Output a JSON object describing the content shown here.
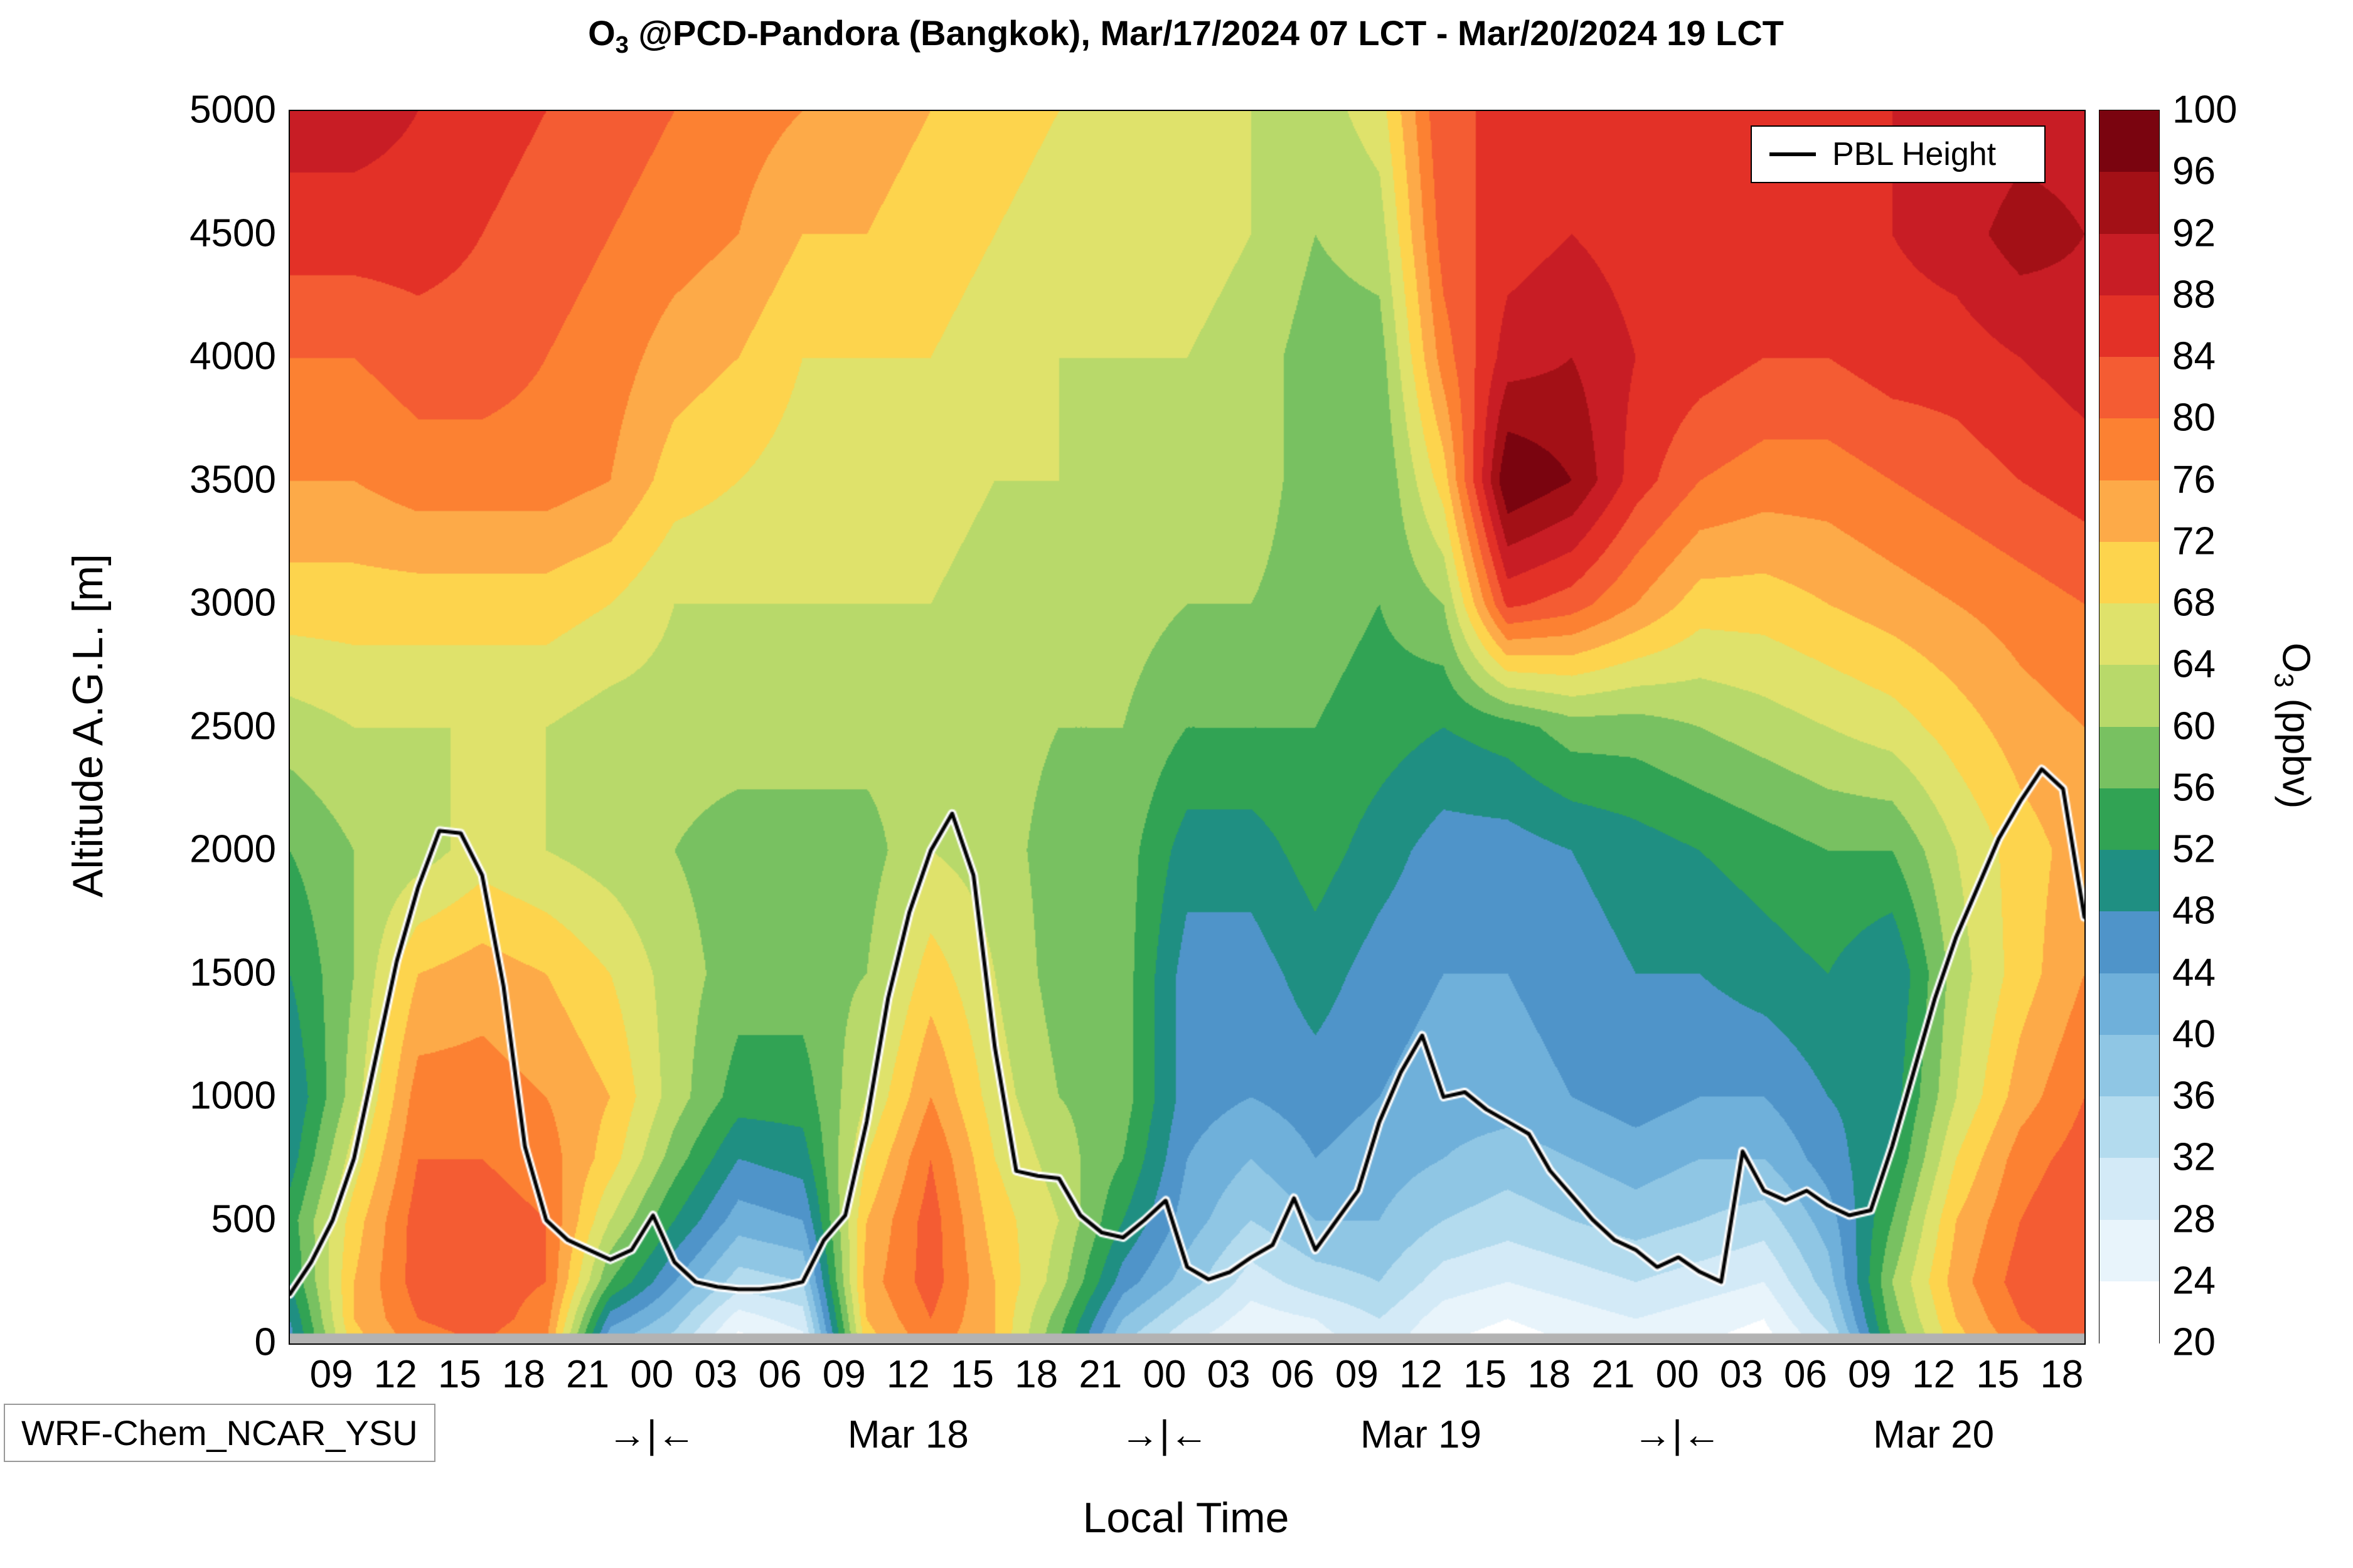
{
  "title": {
    "o": "O",
    "sub": "3",
    "rest": " @PCD-Pandora (Bangkok), Mar/17/2024 07 LCT - Mar/20/2024 19 LCT"
  },
  "ylabel": "Altitude A.G.L. [m]",
  "xlabel": "Local Time",
  "model_label": "WRF-Chem_NCAR_YSU",
  "legend": {
    "pbl_label": "PBL Height"
  },
  "colors": {
    "ground_strip": "#b3b3b3",
    "pbl_line": "#000000",
    "pbl_halo": "#ffffff",
    "frame": "#000000"
  },
  "colorbar": {
    "title_o": "O",
    "title_sub": "3",
    "title_rest": " (ppbv)",
    "min": 20,
    "max": 100,
    "step": 4,
    "tick_labels": [
      100,
      96,
      92,
      88,
      84,
      80,
      76,
      72,
      68,
      64,
      60,
      56,
      52,
      48,
      44,
      40,
      36,
      32,
      28,
      24,
      20
    ],
    "colors": [
      "#ffffff",
      "#e8f4fb",
      "#d3eaf7",
      "#b3dbee",
      "#8fc6e4",
      "#6fb0da",
      "#4f94c9",
      "#1f8f82",
      "#31a354",
      "#78c161",
      "#b8d96a",
      "#dfe26b",
      "#fdd44d",
      "#fdaa48",
      "#fc8132",
      "#f45c33",
      "#e33127",
      "#c81d25",
      "#a31016",
      "#7a040f"
    ]
  },
  "axes": {
    "y_ticks": [
      0,
      500,
      1000,
      1500,
      2000,
      2500,
      3000,
      3500,
      4000,
      4500,
      5000
    ],
    "x_tick_hours": [
      9,
      12,
      15,
      18,
      21,
      24,
      27,
      30,
      33,
      36,
      39,
      42,
      45,
      48,
      51,
      54,
      57,
      60,
      63,
      66,
      69,
      72,
      75,
      78,
      81,
      84,
      87,
      90
    ],
    "x_tick_labels": [
      "09",
      "12",
      "15",
      "18",
      "21",
      "00",
      "03",
      "06",
      "09",
      "12",
      "15",
      "18",
      "21",
      "00",
      "03",
      "06",
      "09",
      "12",
      "15",
      "18",
      "21",
      "00",
      "03",
      "06",
      "09",
      "12",
      "15",
      "18"
    ],
    "date_labels": [
      {
        "hour": 36,
        "label": "Mar 18"
      },
      {
        "hour": 60,
        "label": "Mar 19"
      },
      {
        "hour": 84,
        "label": "Mar 20"
      }
    ],
    "day_separator_hours": [
      24,
      48,
      72
    ],
    "day_separator_text": "→|←"
  },
  "chart_data": {
    "type": "heatmap",
    "title": "O3 @PCD-Pandora (Bangkok), Mar/17/2024 07 LCT - Mar/20/2024 19 LCT",
    "xlabel": "Local Time",
    "ylabel": "Altitude A.G.L. [m]",
    "units": "ppbv",
    "xlim": [
      7,
      91
    ],
    "ylim": [
      0,
      5000
    ],
    "x_hours": [
      7,
      10,
      13,
      16,
      19,
      22,
      25,
      28,
      31,
      34,
      37,
      40,
      43,
      46,
      49,
      52,
      55,
      58,
      61,
      64,
      67,
      70,
      73,
      76,
      79,
      82,
      85,
      88,
      91
    ],
    "altitudes_m": [
      0,
      100,
      250,
      500,
      750,
      1000,
      1500,
      2000,
      2500,
      3000,
      3500,
      4000,
      4500,
      5000
    ],
    "o3_ppbv": [
      [
        46,
        48,
        52,
        54,
        50,
        48,
        52,
        56,
        62,
        70,
        76,
        80,
        86,
        90
      ],
      [
        70,
        72,
        72,
        70,
        66,
        62,
        60,
        60,
        64,
        70,
        76,
        80,
        86,
        90
      ],
      [
        78,
        80,
        82,
        82,
        80,
        78,
        72,
        62,
        64,
        70,
        78,
        82,
        86,
        88
      ],
      [
        80,
        82,
        82,
        82,
        80,
        78,
        74,
        66,
        64,
        70,
        78,
        82,
        84,
        86
      ],
      [
        76,
        78,
        80,
        80,
        78,
        76,
        72,
        64,
        64,
        70,
        78,
        80,
        82,
        84
      ],
      [
        40,
        46,
        56,
        64,
        70,
        72,
        68,
        62,
        62,
        68,
        76,
        78,
        80,
        82
      ],
      [
        34,
        38,
        44,
        52,
        58,
        62,
        62,
        60,
        62,
        64,
        70,
        74,
        78,
        80
      ],
      [
        22,
        26,
        34,
        42,
        48,
        54,
        58,
        58,
        62,
        64,
        68,
        72,
        76,
        78
      ],
      [
        26,
        30,
        36,
        44,
        50,
        54,
        58,
        58,
        62,
        64,
        66,
        68,
        72,
        76
      ],
      [
        70,
        72,
        74,
        72,
        68,
        64,
        60,
        58,
        62,
        64,
        66,
        68,
        72,
        74
      ],
      [
        78,
        80,
        82,
        82,
        80,
        76,
        70,
        64,
        62,
        64,
        66,
        68,
        70,
        72
      ],
      [
        72,
        72,
        72,
        70,
        68,
        66,
        64,
        62,
        62,
        62,
        64,
        66,
        68,
        70
      ],
      [
        56,
        58,
        62,
        64,
        62,
        60,
        58,
        58,
        60,
        62,
        64,
        64,
        66,
        68
      ],
      [
        36,
        40,
        46,
        52,
        56,
        58,
        58,
        58,
        60,
        62,
        62,
        64,
        66,
        68
      ],
      [
        28,
        32,
        38,
        42,
        44,
        46,
        46,
        50,
        56,
        60,
        62,
        64,
        66,
        66
      ],
      [
        24,
        26,
        30,
        36,
        40,
        44,
        46,
        50,
        56,
        60,
        62,
        62,
        64,
        64
      ],
      [
        26,
        28,
        34,
        40,
        44,
        46,
        50,
        54,
        56,
        58,
        58,
        58,
        60,
        62
      ],
      [
        30,
        32,
        36,
        40,
        42,
        44,
        46,
        50,
        54,
        56,
        56,
        58,
        62,
        66
      ],
      [
        24,
        26,
        30,
        36,
        40,
        42,
        44,
        46,
        52,
        60,
        70,
        78,
        82,
        84
      ],
      [
        22,
        24,
        28,
        34,
        38,
        42,
        44,
        46,
        54,
        85,
        100,
        90,
        86,
        84
      ],
      [
        24,
        26,
        30,
        36,
        40,
        44,
        46,
        48,
        58,
        82,
        96,
        92,
        88,
        86
      ],
      [
        26,
        28,
        32,
        38,
        42,
        46,
        48,
        50,
        58,
        76,
        86,
        88,
        86,
        84
      ],
      [
        24,
        26,
        30,
        36,
        40,
        44,
        48,
        52,
        60,
        70,
        80,
        86,
        86,
        84
      ],
      [
        22,
        24,
        28,
        34,
        40,
        44,
        50,
        54,
        62,
        70,
        78,
        84,
        86,
        84
      ],
      [
        30,
        34,
        38,
        42,
        46,
        48,
        52,
        56,
        64,
        72,
        78,
        84,
        88,
        86
      ],
      [
        56,
        58,
        60,
        56,
        52,
        50,
        48,
        56,
        66,
        74,
        80,
        86,
        88,
        88
      ],
      [
        70,
        72,
        74,
        72,
        68,
        64,
        62,
        64,
        70,
        76,
        82,
        86,
        90,
        88
      ],
      [
        78,
        80,
        82,
        80,
        78,
        74,
        70,
        70,
        74,
        78,
        84,
        88,
        94,
        90
      ],
      [
        82,
        84,
        84,
        84,
        82,
        80,
        76,
        74,
        76,
        80,
        86,
        90,
        92,
        90
      ]
    ],
    "pbl": {
      "label": "PBL Height",
      "start_hour": 7,
      "end_hour": 91,
      "interval_hours": 1,
      "values_m": [
        200,
        330,
        500,
        750,
        1150,
        1550,
        1850,
        2080,
        2070,
        1900,
        1450,
        800,
        500,
        420,
        380,
        340,
        380,
        520,
        330,
        250,
        230,
        220,
        220,
        230,
        250,
        420,
        520,
        900,
        1400,
        1750,
        2000,
        2150,
        1900,
        1200,
        700,
        680,
        670,
        520,
        450,
        430,
        500,
        580,
        310,
        260,
        290,
        350,
        400,
        590,
        380,
        500,
        620,
        900,
        1100,
        1250,
        1000,
        1020,
        950,
        900,
        850,
        700,
        600,
        500,
        420,
        380,
        310,
        350,
        290,
        250,
        780,
        620,
        580,
        620,
        560,
        520,
        540,
        800,
        1100,
        1400,
        1650,
        1850,
        2050,
        2200,
        2330,
        2250,
        1730
      ]
    }
  }
}
